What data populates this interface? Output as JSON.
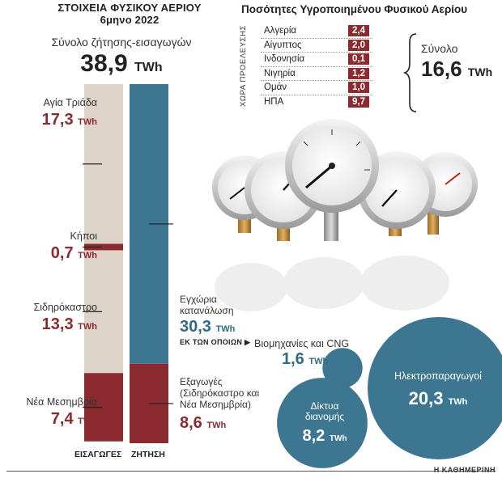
{
  "header": {
    "title_line1": "ΣΤΟΙΧΕΙΑ ΦΥΣΙΚΟΥ ΑΕΡΙΟΥ",
    "title_line2": "6μηνο 2022",
    "total_label": "Σύνολο ζήτησης-εισαγωγών",
    "total_value": "38,9",
    "unit": "TWh"
  },
  "chart_data": [
    {
      "type": "bar",
      "categories": [
        "ΕΙΣΑΓΩΓΕΣ",
        "ΖΗΤΗΣΗ"
      ],
      "total": 38.9,
      "series": {
        "imports": [
          {
            "name": "Αγία Τριάδα",
            "value": 17.3,
            "value_text": "17,3"
          },
          {
            "name": "Κήποι",
            "value": 0.7,
            "value_text": "0,7"
          },
          {
            "name": "Σιδηρόκαστρο",
            "value": 13.3,
            "value_text": "13,3"
          },
          {
            "name": "Νέα Μεσημβρία",
            "value": 7.4,
            "value_text": "7,4"
          }
        ],
        "demand": [
          {
            "name": "Εγχώρια κατανάλωση",
            "value": 30.3,
            "value_text": "30,3"
          },
          {
            "name": "Εξαγωγές (Σιδηρόκαστρο και Νέα Μεσημβρία)",
            "value": 8.6,
            "value_text": "8,6"
          }
        ]
      },
      "colors": {
        "imports_base": "#ddd3c9",
        "imports_highlight": "#8b2a2f",
        "demand_base": "#3d7690",
        "demand_exports": "#8b2a2f"
      }
    },
    {
      "type": "table",
      "title": "Ποσότητες Υγροποιημένου Φυσικού Αερίου",
      "axis_label": "ΧΩΡΑ ΠΡΟΕΛΕΥΣΗΣ",
      "rows": [
        {
          "country": "Αλγερία",
          "value": "2,4"
        },
        {
          "country": "Αίγυπτος",
          "value": "2,0"
        },
        {
          "country": "Ινδονησία",
          "value": "0,1"
        },
        {
          "country": "Νιγηρία",
          "value": "1,2"
        },
        {
          "country": "Ομάν",
          "value": "1,0"
        },
        {
          "country": "ΗΠΑ",
          "value": "9,7"
        }
      ],
      "total_label": "Σύνολο",
      "total_value": "16,6"
    },
    {
      "type": "bubble",
      "subtitle": "ΕΚ ΤΩΝ ΟΠΟΙΩΝ",
      "items": [
        {
          "name": "Βιομηχανίες και CNG",
          "value": 1.6,
          "value_text": "1,6"
        },
        {
          "name": "Ηλεκτροπαραγωγοί",
          "value": 20.3,
          "value_text": "20,3"
        },
        {
          "name_line1": "Δίκτυα",
          "name_line2": "διανομής",
          "value": 8.2,
          "value_text": "8,2"
        }
      ],
      "color": "#3d7690"
    }
  ],
  "labels": {
    "consumption_line1": "Εγχώρια",
    "consumption_line2": "κατανάλωση",
    "exports_line1": "Εξαγωγές",
    "exports_line2": "(Σιδηρόκαστρο και",
    "exports_line3": "Νέα Μεσημβρία)"
  },
  "footer": "Η ΚΑΘΗΜΕΡΙΝΗ"
}
